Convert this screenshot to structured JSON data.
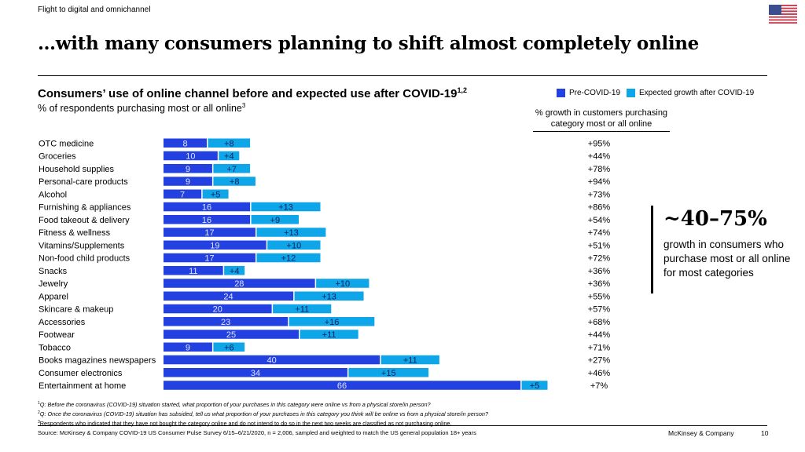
{
  "kicker": "Flight to digital and omnichannel",
  "headline": "…with many consumers planning to shift almost completely online",
  "flag_icon": "us-flag-icon",
  "colors": {
    "pre_covid": "#2340e0",
    "growth": "#0ea5e9",
    "text": "#000000"
  },
  "legend": {
    "items": [
      {
        "label": "Pre-COVID-19",
        "color": "#2340e0"
      },
      {
        "label": "Expected growth after COVID-19",
        "color": "#0ea5e9"
      }
    ]
  },
  "growth_column_header": "% growth in customers purchasing category most or all online",
  "callout": {
    "range": "~40–75%",
    "text": "growth in consumers who purchase most or all online for most categories"
  },
  "chart_data": {
    "type": "bar",
    "orientation": "horizontal",
    "stacked": true,
    "title": "Consumers’ use of online channel before and expected use after COVID-19",
    "title_superscript": "1,2",
    "subtitle": "% of respondents purchasing most or all online",
    "subtitle_superscript": "3",
    "xlabel": "",
    "ylabel": "",
    "xlim": [
      0,
      75
    ],
    "grid": false,
    "legend_position": "top-right",
    "categories": [
      "OTC medicine",
      "Groceries",
      "Household supplies",
      "Personal-care products",
      "Alcohol",
      "Furnishing & appliances",
      "Food takeout & delivery",
      "Fitness & wellness",
      "Vitamins/Supplements",
      "Non-food child products",
      "Snacks",
      "Jewelry",
      "Apparel",
      "Skincare & makeup",
      "Accessories",
      "Footwear",
      "Tobacco",
      "Books magazines newspapers",
      "Consumer electronics",
      "Entertainment at home"
    ],
    "series": [
      {
        "name": "Pre-COVID-19",
        "values": [
          8,
          10,
          9,
          9,
          7,
          16,
          16,
          17,
          19,
          17,
          11,
          28,
          24,
          20,
          23,
          25,
          9,
          40,
          34,
          66
        ]
      },
      {
        "name": "Expected growth after COVID-19",
        "values": [
          8,
          4,
          7,
          8,
          5,
          13,
          9,
          13,
          10,
          12,
          4,
          10,
          13,
          11,
          16,
          11,
          6,
          11,
          15,
          5
        ]
      }
    ],
    "growth_pct_labels": [
      "+95%",
      "+44%",
      "+78%",
      "+94%",
      "+73%",
      "+86%",
      "+54%",
      "+74%",
      "+51%",
      "+72%",
      "+36%",
      "+36%",
      "+55%",
      "+57%",
      "+68%",
      "+44%",
      "+71%",
      "+27%",
      "+46%",
      "+7%"
    ]
  },
  "footnotes": [
    {
      "mark": "1",
      "text": "Q: Before the coronavirus (COVID-19) situation started, what proportion of your purchases in this category were online vs from a physical store/in person?"
    },
    {
      "mark": "2",
      "text": "Q: Once the coronavirus (COVID-19) situation has subsided, tell us what proportion of your purchases in this category you think will be online vs from a physical store/in person?"
    },
    {
      "mark": "3",
      "text": "Respondents who indicated that they have not bought the category online and do not intend to do so in the next two weeks are classified as not purchasing online."
    }
  ],
  "source": "Source: McKinsey & Company COVID-19 US Consumer Pulse Survey 6/15–6/21/2020, n = 2,006, sampled and weighted to match the US general population 18+ years",
  "brand": "McKinsey & Company",
  "page_number": "10"
}
